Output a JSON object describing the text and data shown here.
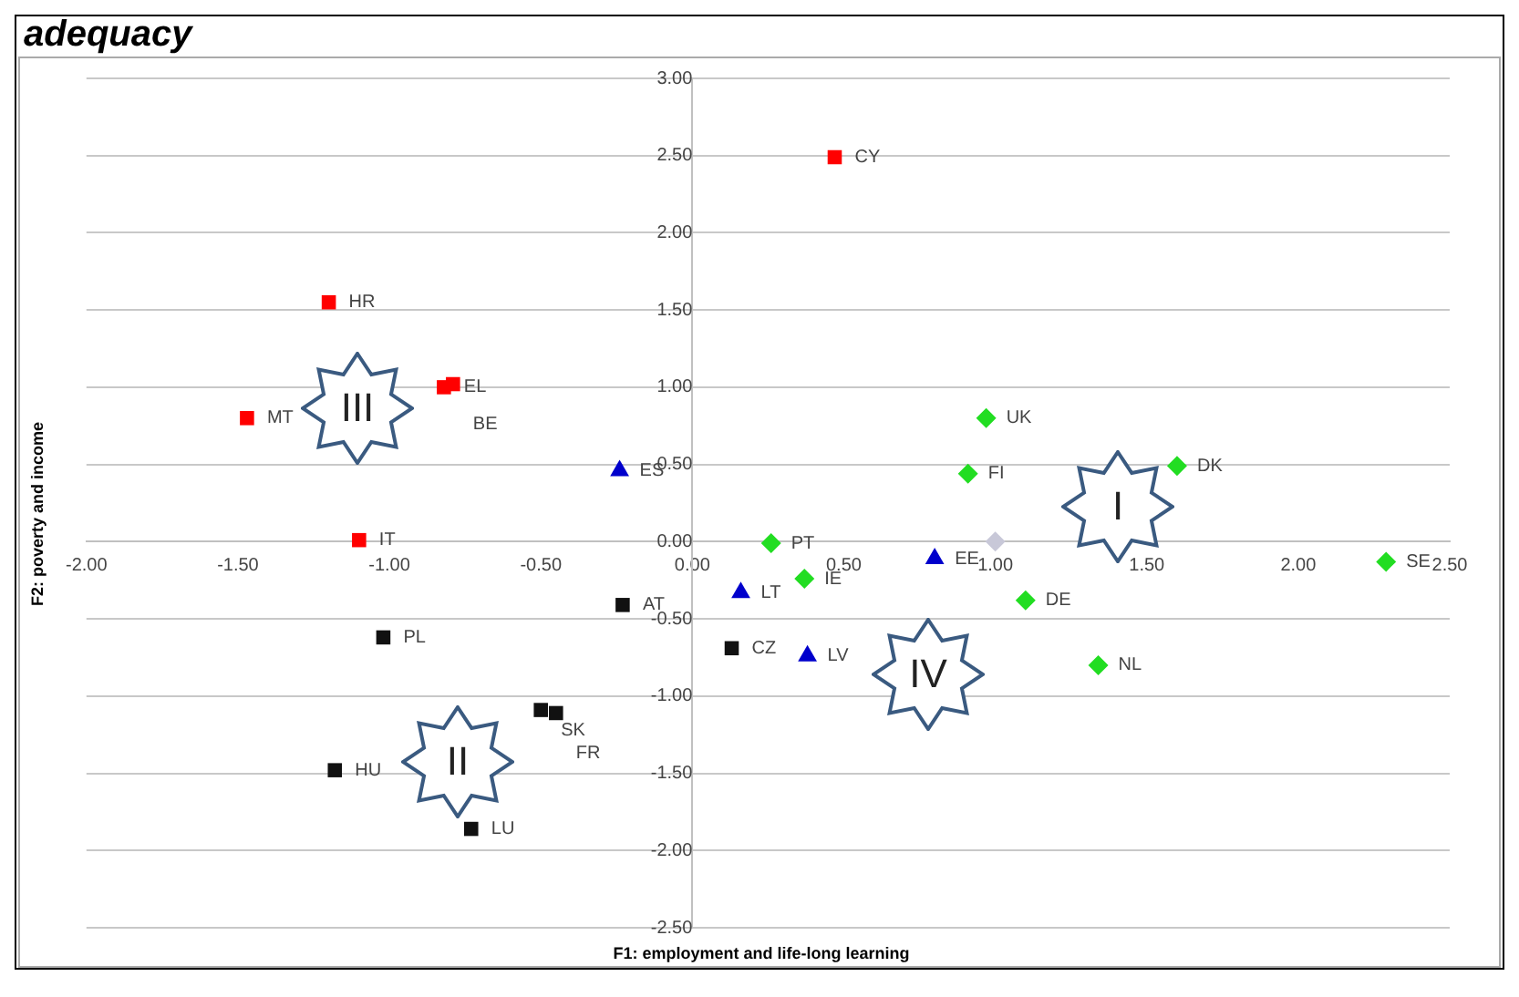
{
  "chart_data": {
    "type": "scatter",
    "title": "adequacy",
    "xlabel": "F1: employment and life-long learning",
    "ylabel": "F2: poverty and income",
    "xlim": [
      -2,
      2.5
    ],
    "ylim": [
      -2.5,
      3
    ],
    "xticks": [
      {
        "value": -2,
        "label": "-2.00"
      },
      {
        "value": -1.5,
        "label": "-1.50"
      },
      {
        "value": -1,
        "label": "-1.00"
      },
      {
        "value": -0.5,
        "label": "-0.50"
      },
      {
        "value": 0,
        "label": "0.00"
      },
      {
        "value": 0.5,
        "label": "0.50"
      },
      {
        "value": 1,
        "label": "1.00"
      },
      {
        "value": 1.5,
        "label": "1.50"
      },
      {
        "value": 2,
        "label": "2.00"
      },
      {
        "value": 2.5,
        "label": "2.50"
      }
    ],
    "yticks": [
      {
        "value": -2.5,
        "label": "-2.50"
      },
      {
        "value": -2,
        "label": "-2.00"
      },
      {
        "value": -1.5,
        "label": "-1.50"
      },
      {
        "value": -1,
        "label": "-1.00"
      },
      {
        "value": -0.5,
        "label": "-0.50"
      },
      {
        "value": 0,
        "label": "0.00"
      },
      {
        "value": 0.5,
        "label": "0.50"
      },
      {
        "value": 1,
        "label": "1.00"
      },
      {
        "value": 1.5,
        "label": "1.50"
      },
      {
        "value": 2,
        "label": "2.00"
      },
      {
        "value": 2.5,
        "label": "2.50"
      },
      {
        "value": 3,
        "label": "3.00"
      }
    ],
    "grid": "y",
    "legend": false,
    "series": [
      {
        "color": "#ff0000",
        "marker": "square",
        "x": [
          -1.2,
          -1.47,
          -0.82,
          -0.79,
          0.47,
          -1.1
        ],
        "values": [
          1.55,
          0.8,
          1.0,
          1.02,
          2.49,
          0.01
        ],
        "value_labels": [
          "HR",
          "MT",
          "EL",
          "BE",
          "CY",
          "IT"
        ]
      },
      {
        "color": "#0000cc",
        "marker": "triangle",
        "x": [
          -0.24,
          0.16,
          0.38,
          0.8
        ],
        "values": [
          0.46,
          -0.33,
          -0.74,
          -0.11
        ],
        "value_labels": [
          "ES",
          "LT",
          "LV",
          "EE"
        ]
      },
      {
        "color": "#22dd22",
        "marker": "diamond",
        "x": [
          0.97,
          0.91,
          1.6,
          0.26,
          0.37,
          1.1,
          1.34,
          2.29
        ],
        "values": [
          0.8,
          0.44,
          0.49,
          -0.01,
          -0.24,
          -0.38,
          -0.8,
          -0.13
        ],
        "value_labels": [
          "UK",
          "FI",
          "DK",
          "PT",
          "IE",
          "DE",
          "NL",
          "SE"
        ]
      },
      {
        "color": "#c8c8d8",
        "marker": "diamond",
        "x": [
          1.0
        ],
        "values": [
          0.0
        ],
        "value_labels": [
          null
        ]
      },
      {
        "color": "#111111",
        "marker": "square",
        "x": [
          -0.23,
          -1.02,
          0.13,
          -1.18,
          -0.73,
          -0.5,
          -0.45
        ],
        "values": [
          -0.41,
          -0.62,
          -0.69,
          -1.48,
          -1.86,
          -1.09,
          -1.11
        ],
        "value_labels": [
          "AT",
          "PL",
          "CZ",
          "HU",
          "LU",
          "SK",
          "FR"
        ]
      }
    ],
    "annotations": [
      "I",
      "II",
      "III",
      "IV"
    ]
  }
}
